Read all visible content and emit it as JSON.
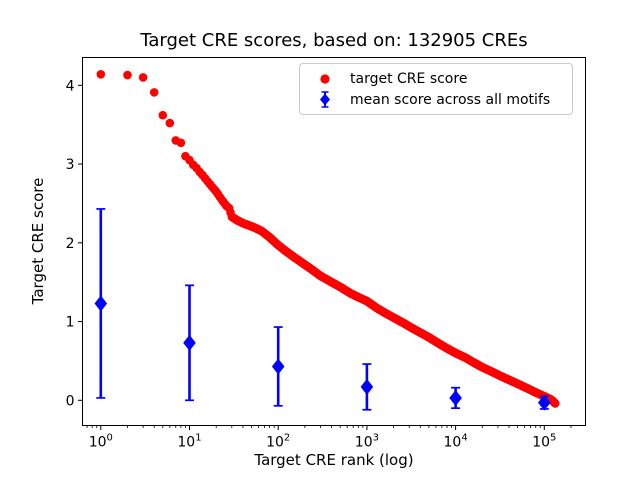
{
  "chart_data": {
    "type": "scatter",
    "title": "Target CRE scores, based on: 132905 CREs",
    "xlabel": "Target CRE rank (log)",
    "ylabel": "Target CRE score",
    "x_scale": "log",
    "xlim": [
      0.62,
      290000
    ],
    "ylim": [
      -0.32,
      4.35
    ],
    "x_ticks": [
      "10^0",
      "10^1",
      "10^2",
      "10^3",
      "10^4",
      "10^5"
    ],
    "x_tick_exponents": [
      0,
      1,
      2,
      3,
      4,
      5
    ],
    "y_ticks": [
      0,
      1,
      2,
      3,
      4
    ],
    "grid": false,
    "legend_position": "upper right",
    "n_cres_total": 132905,
    "series": [
      {
        "name": "target CRE score",
        "marker": "circle",
        "color": "#ff0000",
        "note": "132905 points forming a dense monotone curve; sampled anchor points [rank, score]",
        "points_sampled": [
          [
            1,
            4.14
          ],
          [
            2,
            4.13
          ],
          [
            3,
            4.1
          ],
          [
            4,
            3.91
          ],
          [
            5,
            3.62
          ],
          [
            6,
            3.52
          ],
          [
            7,
            3.3
          ],
          [
            8,
            3.27
          ],
          [
            9,
            3.1
          ],
          [
            10,
            3.05
          ],
          [
            11,
            2.99
          ],
          [
            12,
            2.95
          ],
          [
            13,
            2.9
          ],
          [
            14,
            2.86
          ],
          [
            16,
            2.78
          ],
          [
            18,
            2.71
          ],
          [
            20,
            2.65
          ],
          [
            23,
            2.55
          ],
          [
            26,
            2.47
          ],
          [
            28,
            2.44
          ],
          [
            30,
            2.33
          ],
          [
            34,
            2.29
          ],
          [
            40,
            2.25
          ],
          [
            47,
            2.22
          ],
          [
            55,
            2.19
          ],
          [
            65,
            2.15
          ],
          [
            80,
            2.07
          ],
          [
            100,
            1.97
          ],
          [
            120,
            1.9
          ],
          [
            150,
            1.82
          ],
          [
            190,
            1.74
          ],
          [
            240,
            1.66
          ],
          [
            300,
            1.58
          ],
          [
            400,
            1.5
          ],
          [
            500,
            1.44
          ],
          [
            650,
            1.36
          ],
          [
            800,
            1.31
          ],
          [
            1000,
            1.26
          ],
          [
            1300,
            1.17
          ],
          [
            1600,
            1.11
          ],
          [
            2000,
            1.05
          ],
          [
            2600,
            0.98
          ],
          [
            3200,
            0.92
          ],
          [
            4000,
            0.86
          ],
          [
            5000,
            0.8
          ],
          [
            6500,
            0.72
          ],
          [
            8000,
            0.66
          ],
          [
            10000,
            0.6
          ],
          [
            13000,
            0.54
          ],
          [
            16000,
            0.48
          ],
          [
            20000,
            0.42
          ],
          [
            26000,
            0.36
          ],
          [
            32000,
            0.31
          ],
          [
            40000,
            0.26
          ],
          [
            50000,
            0.21
          ],
          [
            65000,
            0.15
          ],
          [
            80000,
            0.1
          ],
          [
            100000,
            0.05
          ],
          [
            115000,
            0.02
          ],
          [
            125000,
            -0.01
          ],
          [
            132905,
            -0.04
          ]
        ]
      },
      {
        "name": "mean score across all motifs",
        "marker": "diamond",
        "color": "#0000ff",
        "error_bars": "symmetric, with caps",
        "points": [
          {
            "rank": 1,
            "mean": 1.23,
            "std": 1.2
          },
          {
            "rank": 10,
            "mean": 0.73,
            "std": 0.73
          },
          {
            "rank": 100,
            "mean": 0.43,
            "std": 0.5
          },
          {
            "rank": 1000,
            "mean": 0.17,
            "std": 0.29
          },
          {
            "rank": 10000,
            "mean": 0.03,
            "std": 0.13
          },
          {
            "rank": 100000,
            "mean": -0.03,
            "std": 0.08
          }
        ]
      }
    ]
  },
  "colors": {
    "red_series": "#ff0000",
    "blue_series": "#0000ff",
    "axis": "#000000",
    "legend_border": "#c9c9c9",
    "background": "#ffffff"
  }
}
